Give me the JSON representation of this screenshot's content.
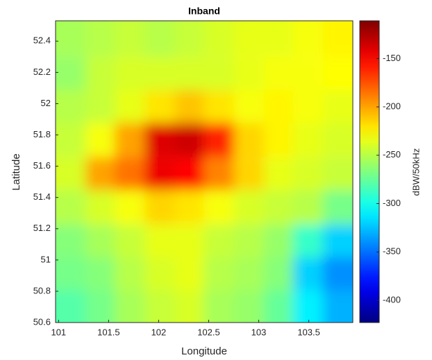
{
  "chart_data": {
    "type": "heatmap",
    "title": "Inband",
    "xlabel": "Longitude",
    "ylabel": "Latitude",
    "x": [
      101.12,
      101.42,
      101.71,
      102.01,
      102.31,
      102.6,
      102.9,
      103.2,
      103.49,
      103.79
    ],
    "y": [
      52.41,
      52.19,
      51.98,
      51.77,
      51.55,
      51.34,
      51.12,
      50.91,
      50.7
    ],
    "z": [
      [
        -255,
        -250,
        -245,
        -250,
        -245,
        -240,
        -235,
        -235,
        -230,
        -225
      ],
      [
        -260,
        -245,
        -240,
        -240,
        -240,
        -240,
        -235,
        -230,
        -230,
        -228
      ],
      [
        -250,
        -245,
        -235,
        -220,
        -210,
        -220,
        -230,
        -225,
        -230,
        -235
      ],
      [
        -245,
        -230,
        -200,
        -140,
        -135,
        -160,
        -215,
        -225,
        -235,
        -240
      ],
      [
        -240,
        -200,
        -185,
        -145,
        -150,
        -190,
        -215,
        -235,
        -240,
        -245
      ],
      [
        -250,
        -240,
        -230,
        -215,
        -220,
        -230,
        -240,
        -245,
        -250,
        -270
      ],
      [
        -265,
        -255,
        -245,
        -235,
        -235,
        -245,
        -250,
        -260,
        -290,
        -320
      ],
      [
        -270,
        -265,
        -250,
        -240,
        -235,
        -250,
        -255,
        -265,
        -320,
        -340
      ],
      [
        -280,
        -270,
        -255,
        -245,
        -240,
        -255,
        -260,
        -275,
        -310,
        -330
      ]
    ],
    "xlim": [
      100.97,
      103.94
    ],
    "ylim": [
      50.6,
      52.53
    ],
    "xticks": [
      101,
      101.5,
      102,
      102.5,
      103,
      103.5
    ],
    "yticks": [
      50.6,
      50.8,
      51,
      51.2,
      51.4,
      51.6,
      51.8,
      52,
      52.2,
      52.4
    ],
    "colormap": "jet",
    "clim": [
      -423,
      -111
    ],
    "colorbar": {
      "label": "dBW/50kHz",
      "ticks": [
        -400,
        -350,
        -300,
        -250,
        -200,
        -150
      ]
    }
  }
}
